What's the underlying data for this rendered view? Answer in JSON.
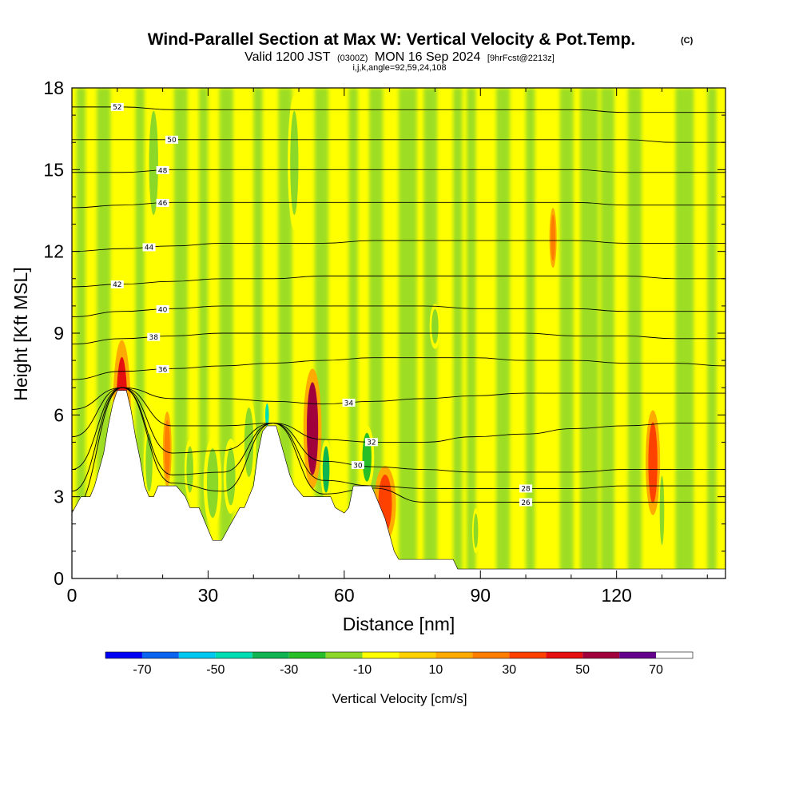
{
  "chart_data": {
    "type": "heatmap",
    "title": "Wind-Parallel Section at Max W: Vertical Velocity & Pot.Temp.",
    "title_mark": "(C)",
    "subtitle_parts": [
      "Valid 1200 JST",
      "(0300Z)",
      "MON 16 Sep 2024",
      "[9hrFcst@2213z]"
    ],
    "subtitle2": "i,j,k,angle=92,59,24,108",
    "xlabel": "Distance [nm]",
    "ylabel": "Height [Kft MSL]",
    "xlim": [
      0,
      144
    ],
    "ylim": [
      0,
      18
    ],
    "xticks": [
      "0",
      "30",
      "60",
      "90",
      "120"
    ],
    "xtick_values": [
      0,
      30,
      60,
      90,
      120
    ],
    "yticks": [
      "0",
      "3",
      "6",
      "9",
      "12",
      "15",
      "18"
    ],
    "ytick_values": [
      0,
      3,
      6,
      9,
      12,
      15,
      18
    ],
    "colorbar": {
      "label": "Vertical Velocity [cm/s]",
      "levels": [
        -80,
        -70,
        -60,
        -50,
        -40,
        -30,
        -20,
        -10,
        0,
        10,
        20,
        30,
        40,
        50,
        60,
        70,
        80
      ],
      "colors": [
        "#0000f5",
        "#0a64f0",
        "#00c8f0",
        "#00dcb4",
        "#10b450",
        "#28be28",
        "#8cd828",
        "#ffff00",
        "#ffd200",
        "#ffaa00",
        "#ff7d00",
        "#ff4100",
        "#e60f0f",
        "#a0003c",
        "#64008c"
      ],
      "ticks": [
        "-70",
        "-50",
        "-30",
        "-10",
        "10",
        "30",
        "50",
        "70"
      ],
      "tick_values": [
        -70,
        -50,
        -30,
        -10,
        10,
        30,
        50,
        70
      ]
    },
    "terrain": [
      [
        0,
        2.4
      ],
      [
        2,
        3.0
      ],
      [
        4,
        3.0
      ],
      [
        5,
        3.4
      ],
      [
        6,
        4.0
      ],
      [
        7,
        4.6
      ],
      [
        8,
        5.6
      ],
      [
        9,
        6.4
      ],
      [
        10,
        6.9
      ],
      [
        12,
        6.9
      ],
      [
        13,
        6.2
      ],
      [
        14,
        5.2
      ],
      [
        15,
        4.4
      ],
      [
        16,
        3.4
      ],
      [
        17,
        3.0
      ],
      [
        18,
        3.0
      ],
      [
        19,
        3.4
      ],
      [
        21,
        3.4
      ],
      [
        23,
        3.4
      ],
      [
        25,
        3.0
      ],
      [
        26,
        2.6
      ],
      [
        28,
        2.6
      ],
      [
        29,
        2.2
      ],
      [
        30,
        1.8
      ],
      [
        31,
        1.4
      ],
      [
        33,
        1.4
      ],
      [
        35,
        2.0
      ],
      [
        37,
        2.6
      ],
      [
        38,
        2.6
      ],
      [
        39,
        3.0
      ],
      [
        40,
        3.4
      ],
      [
        41,
        4.6
      ],
      [
        42,
        5.4
      ],
      [
        43,
        5.6
      ],
      [
        45,
        5.6
      ],
      [
        46,
        5.0
      ],
      [
        47,
        4.4
      ],
      [
        48,
        3.8
      ],
      [
        49,
        3.4
      ],
      [
        51,
        3.0
      ],
      [
        53,
        3.0
      ],
      [
        55,
        3.0
      ],
      [
        57,
        3.0
      ],
      [
        58,
        2.6
      ],
      [
        60,
        2.4
      ],
      [
        61,
        2.6
      ],
      [
        62,
        3.4
      ],
      [
        64,
        3.4
      ],
      [
        66,
        3.4
      ],
      [
        67,
        3.0
      ],
      [
        68,
        2.6
      ],
      [
        69,
        2.2
      ],
      [
        70,
        1.6
      ],
      [
        71,
        1.0
      ],
      [
        72,
        0.7
      ],
      [
        76,
        0.7
      ],
      [
        84,
        0.7
      ],
      [
        85,
        0.35
      ],
      [
        100,
        0.35
      ],
      [
        144,
        0.35
      ]
    ],
    "theta_contours": [
      {
        "label": "26",
        "heights": [
          2.4,
          2.8,
          3.0,
          3.2,
          3.2,
          3.0,
          2.9,
          2.8,
          2.8,
          2.8,
          2.8,
          2.8,
          2.8,
          2.8
        ],
        "label_at": 100
      },
      {
        "label": "28",
        "heights": [
          3.2,
          3.6,
          3.8,
          3.9,
          3.9,
          3.6,
          3.4,
          3.3,
          3.3,
          3.3,
          3.3,
          3.4,
          3.4,
          3.4
        ],
        "label_at": 100
      },
      {
        "label": "30",
        "heights": [
          4.0,
          4.4,
          4.6,
          4.7,
          4.6,
          4.3,
          4.1,
          4.0,
          3.9,
          3.9,
          3.9,
          4.0,
          4.0,
          4.0
        ],
        "label_at": 63
      },
      {
        "label": "32",
        "heights": [
          5.2,
          5.5,
          5.6,
          5.6,
          5.4,
          5.1,
          5.0,
          5.0,
          5.2,
          5.3,
          5.5,
          5.6,
          5.7,
          5.7
        ],
        "label_at": 66
      },
      {
        "label": "34",
        "heights": [
          6.2,
          6.5,
          6.6,
          6.6,
          6.5,
          6.4,
          6.5,
          6.6,
          6.7,
          6.8,
          6.8,
          6.8,
          6.8,
          6.8
        ],
        "label_at": 61
      },
      {
        "label": "36",
        "heights": [
          7.3,
          7.6,
          7.7,
          7.8,
          7.9,
          8.0,
          8.1,
          8.1,
          8.1,
          8.0,
          8.0,
          7.9,
          7.9,
          7.8
        ],
        "label_at": 20
      },
      {
        "label": "38",
        "heights": [
          8.6,
          8.8,
          8.9,
          9.0,
          9.0,
          9.0,
          9.0,
          9.0,
          9.0,
          9.0,
          8.9,
          8.9,
          8.8,
          8.8
        ],
        "label_at": 18
      },
      {
        "label": "40",
        "heights": [
          9.6,
          9.8,
          9.9,
          10.0,
          10.0,
          10.0,
          10.0,
          10.0,
          9.9,
          9.9,
          9.9,
          9.8,
          9.8,
          9.8
        ],
        "label_at": 20
      },
      {
        "label": "42",
        "heights": [
          10.7,
          10.8,
          10.9,
          11.0,
          11.0,
          11.1,
          11.1,
          11.1,
          11.1,
          11.1,
          11.1,
          11.1,
          11.0,
          11.0
        ],
        "label_at": 10
      },
      {
        "label": "44",
        "heights": [
          12.0,
          12.1,
          12.2,
          12.3,
          12.3,
          12.3,
          12.4,
          12.4,
          12.4,
          12.4,
          12.4,
          12.3,
          12.3,
          12.3
        ],
        "label_at": 17
      },
      {
        "label": "46",
        "heights": [
          13.6,
          13.7,
          13.8,
          13.8,
          13.8,
          13.8,
          13.8,
          13.8,
          13.8,
          13.8,
          13.8,
          13.7,
          13.7,
          13.7
        ],
        "label_at": 20
      },
      {
        "label": "48",
        "heights": [
          14.9,
          14.9,
          15.0,
          15.0,
          15.0,
          15.0,
          15.0,
          15.0,
          15.0,
          15.0,
          15.0,
          14.9,
          14.9,
          14.9
        ],
        "label_at": 20
      },
      {
        "label": "50",
        "heights": [
          16.1,
          16.1,
          16.1,
          16.1,
          16.1,
          16.1,
          16.1,
          16.1,
          16.1,
          16.1,
          16.1,
          16.1,
          16.0,
          16.0
        ],
        "label_at": 22
      },
      {
        "label": "52",
        "heights": [
          17.3,
          17.3,
          17.2,
          17.2,
          17.2,
          17.2,
          17.2,
          17.2,
          17.2,
          17.2,
          17.2,
          17.1,
          17.1,
          17.1
        ],
        "label_at": 10
      }
    ],
    "vertical_velocity_features": [
      {
        "x": 11,
        "z_bottom": 3.5,
        "z_top": 8.5,
        "width": 2.5,
        "w": 40
      },
      {
        "x": 18,
        "z_bottom": 13.0,
        "z_top": 17.5,
        "width": 2.0,
        "w": -20
      },
      {
        "x": 17,
        "z_bottom": 3.0,
        "z_top": 5.5,
        "width": 1.5,
        "w": -20
      },
      {
        "x": 21,
        "z_bottom": 3.5,
        "z_top": 6.0,
        "width": 1.2,
        "w": 20
      },
      {
        "x": 26,
        "z_bottom": 3.0,
        "z_top": 5.0,
        "width": 1.5,
        "w": -20
      },
      {
        "x": 31,
        "z_bottom": 2.0,
        "z_top": 5.0,
        "width": 2.5,
        "w": -20
      },
      {
        "x": 35,
        "z_bottom": 2.5,
        "z_top": 5.0,
        "width": 2.0,
        "w": -20
      },
      {
        "x": 39,
        "z_bottom": 3.5,
        "z_top": 6.5,
        "width": 2.0,
        "w": -20
      },
      {
        "x": 43,
        "z_bottom": 5.5,
        "z_top": 6.5,
        "width": 0.8,
        "w": -50
      },
      {
        "x": 49,
        "z_bottom": 13.0,
        "z_top": 17.5,
        "width": 1.8,
        "w": -20
      },
      {
        "x": 53,
        "z_bottom": 3.5,
        "z_top": 7.5,
        "width": 2.5,
        "w": 50
      },
      {
        "x": 56,
        "z_bottom": 3.0,
        "z_top": 5.0,
        "width": 1.5,
        "w": -40
      },
      {
        "x": 65,
        "z_bottom": 3.4,
        "z_top": 5.5,
        "width": 2.0,
        "w": -30
      },
      {
        "x": 69,
        "z_bottom": 1.5,
        "z_top": 4.0,
        "width": 3.0,
        "w": 30
      },
      {
        "x": 80,
        "z_bottom": 8.5,
        "z_top": 10.0,
        "width": 1.5,
        "w": -20
      },
      {
        "x": 89,
        "z_bottom": 1.0,
        "z_top": 2.5,
        "width": 1.0,
        "w": -20
      },
      {
        "x": 106,
        "z_bottom": 11.5,
        "z_top": 13.5,
        "width": 1.0,
        "w": 20
      },
      {
        "x": 128,
        "z_bottom": 2.5,
        "z_top": 6.0,
        "width": 2.0,
        "w": 30
      },
      {
        "x": 130,
        "z_bottom": 1.0,
        "z_top": 4.0,
        "width": 1.0,
        "w": -20
      }
    ]
  }
}
